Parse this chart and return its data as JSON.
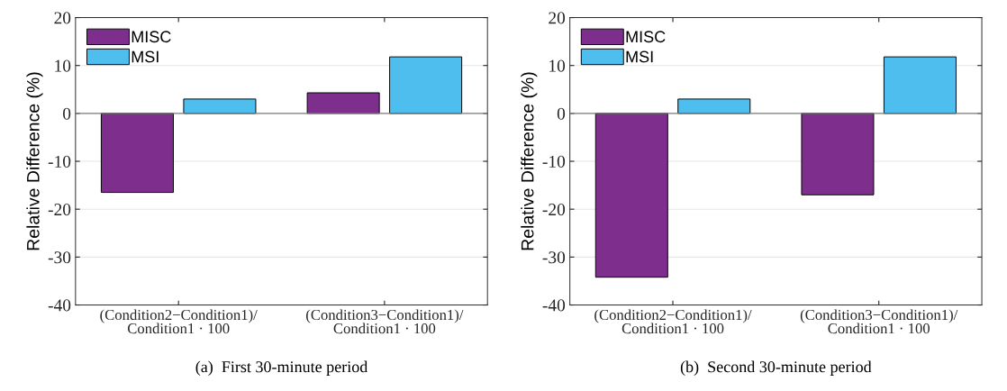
{
  "chart_data": [
    {
      "type": "bar",
      "title": "(a)  First 30-minute period",
      "ylabel": "Relative Difference (%)",
      "categories": [
        "(Condition2−Condition1)/Condition1 · 100",
        "(Condition3−Condition1)/Condition1 · 100"
      ],
      "series": [
        {
          "name": "MISC",
          "color": "#7e2f8e",
          "values": [
            -16.5,
            4.3
          ]
        },
        {
          "name": "MSI",
          "color": "#4dbeee",
          "values": [
            3.0,
            11.8
          ]
        }
      ],
      "ylim": [
        -40,
        20
      ],
      "yticks": [
        -40,
        -30,
        -20,
        -10,
        0,
        10,
        20
      ],
      "grid": "y",
      "legend": "top left",
      "ref_lines": [
        {
          "axis": "y",
          "value": 0,
          "color": "#808080"
        }
      ]
    },
    {
      "type": "bar",
      "title": "(b)  Second 30-minute period",
      "ylabel": "Relative Difference (%)",
      "categories": [
        "(Condition2−Condition1)/Condition1 · 100",
        "(Condition3−Condition1)/Condition1 · 100"
      ],
      "series": [
        {
          "name": "MISC",
          "color": "#7e2f8e",
          "values": [
            -34.2,
            -17.0
          ]
        },
        {
          "name": "MSI",
          "color": "#4dbeee",
          "values": [
            3.0,
            11.8
          ]
        }
      ],
      "ylim": [
        -40,
        20
      ],
      "yticks": [
        -40,
        -30,
        -20,
        -10,
        0,
        10,
        20
      ],
      "grid": "y",
      "legend": "top left",
      "ref_lines": [
        {
          "axis": "y",
          "value": 0,
          "color": "#808080"
        }
      ]
    }
  ]
}
